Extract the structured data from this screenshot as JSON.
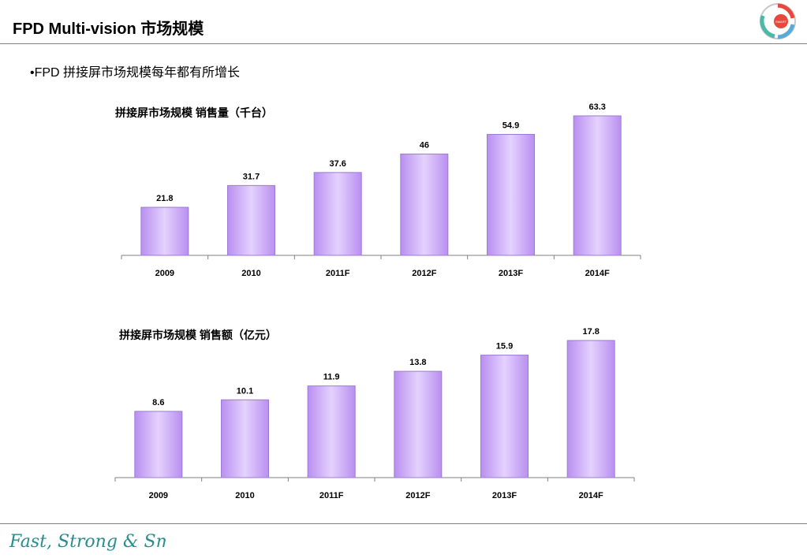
{
  "slide": {
    "title": "FPD Multi-vision 市场规模",
    "bullet": "•FPD 拼接屏市场规模每年都有所增长"
  },
  "logo": {
    "badge_icon": "fast-strong-smart-badge-icon",
    "badge_text": [
      "STRONG",
      "SMART",
      "FAST"
    ],
    "footer_text": "Fast, Strong & Smart"
  },
  "colors": {
    "bar_fill_light": "#e4d2fd",
    "bar_fill_dark": "#b98ff0",
    "bar_stroke": "#9c7ad8",
    "rule": "#7f7f7f",
    "footer_text": "#2a8c8c"
  },
  "chart_data": [
    {
      "type": "bar",
      "title": "拼接屏市场规模 销售量（千台）",
      "categories": [
        "2009",
        "2010",
        "2011F",
        "2012F",
        "2013F",
        "2014F"
      ],
      "values": [
        21.8,
        31.7,
        37.6,
        46,
        54.9,
        63.3
      ],
      "value_labels": [
        "21.8",
        "31.7",
        "37.6",
        "46",
        "54.9",
        "63.3"
      ],
      "xlabel": "",
      "ylabel": "",
      "ylim": [
        0,
        63.3
      ],
      "grid": false,
      "legend": "none"
    },
    {
      "type": "bar",
      "title": "拼接屏市场规模 销售额（亿元）",
      "categories": [
        "2009",
        "2010",
        "2011F",
        "2012F",
        "2013F",
        "2014F"
      ],
      "values": [
        8.6,
        10.1,
        11.9,
        13.8,
        15.9,
        17.8
      ],
      "value_labels": [
        "8.6",
        "10.1",
        "11.9",
        "13.8",
        "15.9",
        "17.8"
      ],
      "xlabel": "",
      "ylabel": "",
      "ylim": [
        0,
        17.8
      ],
      "grid": false,
      "legend": "none"
    }
  ]
}
